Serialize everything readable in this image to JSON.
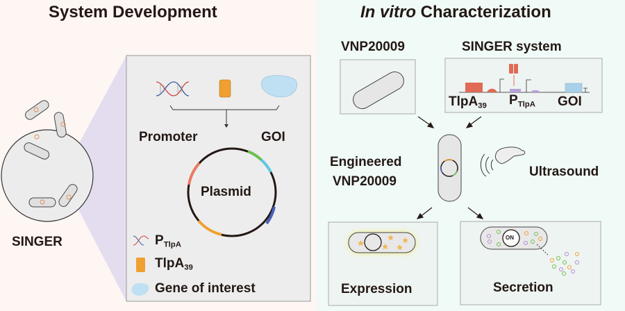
{
  "left_panel": {
    "title": "System Development",
    "culture_label": "SINGER",
    "promoter_label": "Promoter",
    "goi_label": "GOI",
    "plasmid_label": "Plasmid",
    "legend": [
      {
        "main": "P",
        "sub": "TlpA",
        "icon": "dna-icon"
      },
      {
        "main": "TlpA",
        "sub": "39",
        "icon": "orange-block-icon"
      },
      {
        "main": "Gene of interest",
        "sub": "",
        "icon": "blob-icon"
      }
    ]
  },
  "right_panel": {
    "title_italic": "In vitro",
    "title_rest": " Characterization",
    "strain_label": "VNP20009",
    "system_label": "SINGER system",
    "circuit": {
      "tlpa": "TlpA",
      "tlpa_sub": "39",
      "p": "P",
      "p_sub": "TlpA",
      "goi": "GOI"
    },
    "engineered_line1": "Engineered",
    "engineered_line2": "VNP20009",
    "ultrasound_label": "Ultrasound",
    "expression_label": "Expression",
    "secretion_label": "Secretion",
    "on_label": "ON"
  },
  "colors": {
    "left_bg": "#fdf6f3",
    "right_bg": "#f0faf6",
    "orange": "#f0a030",
    "red": "#e06a55",
    "purple": "#b9a2d8",
    "blue": "#a9d0ea"
  }
}
